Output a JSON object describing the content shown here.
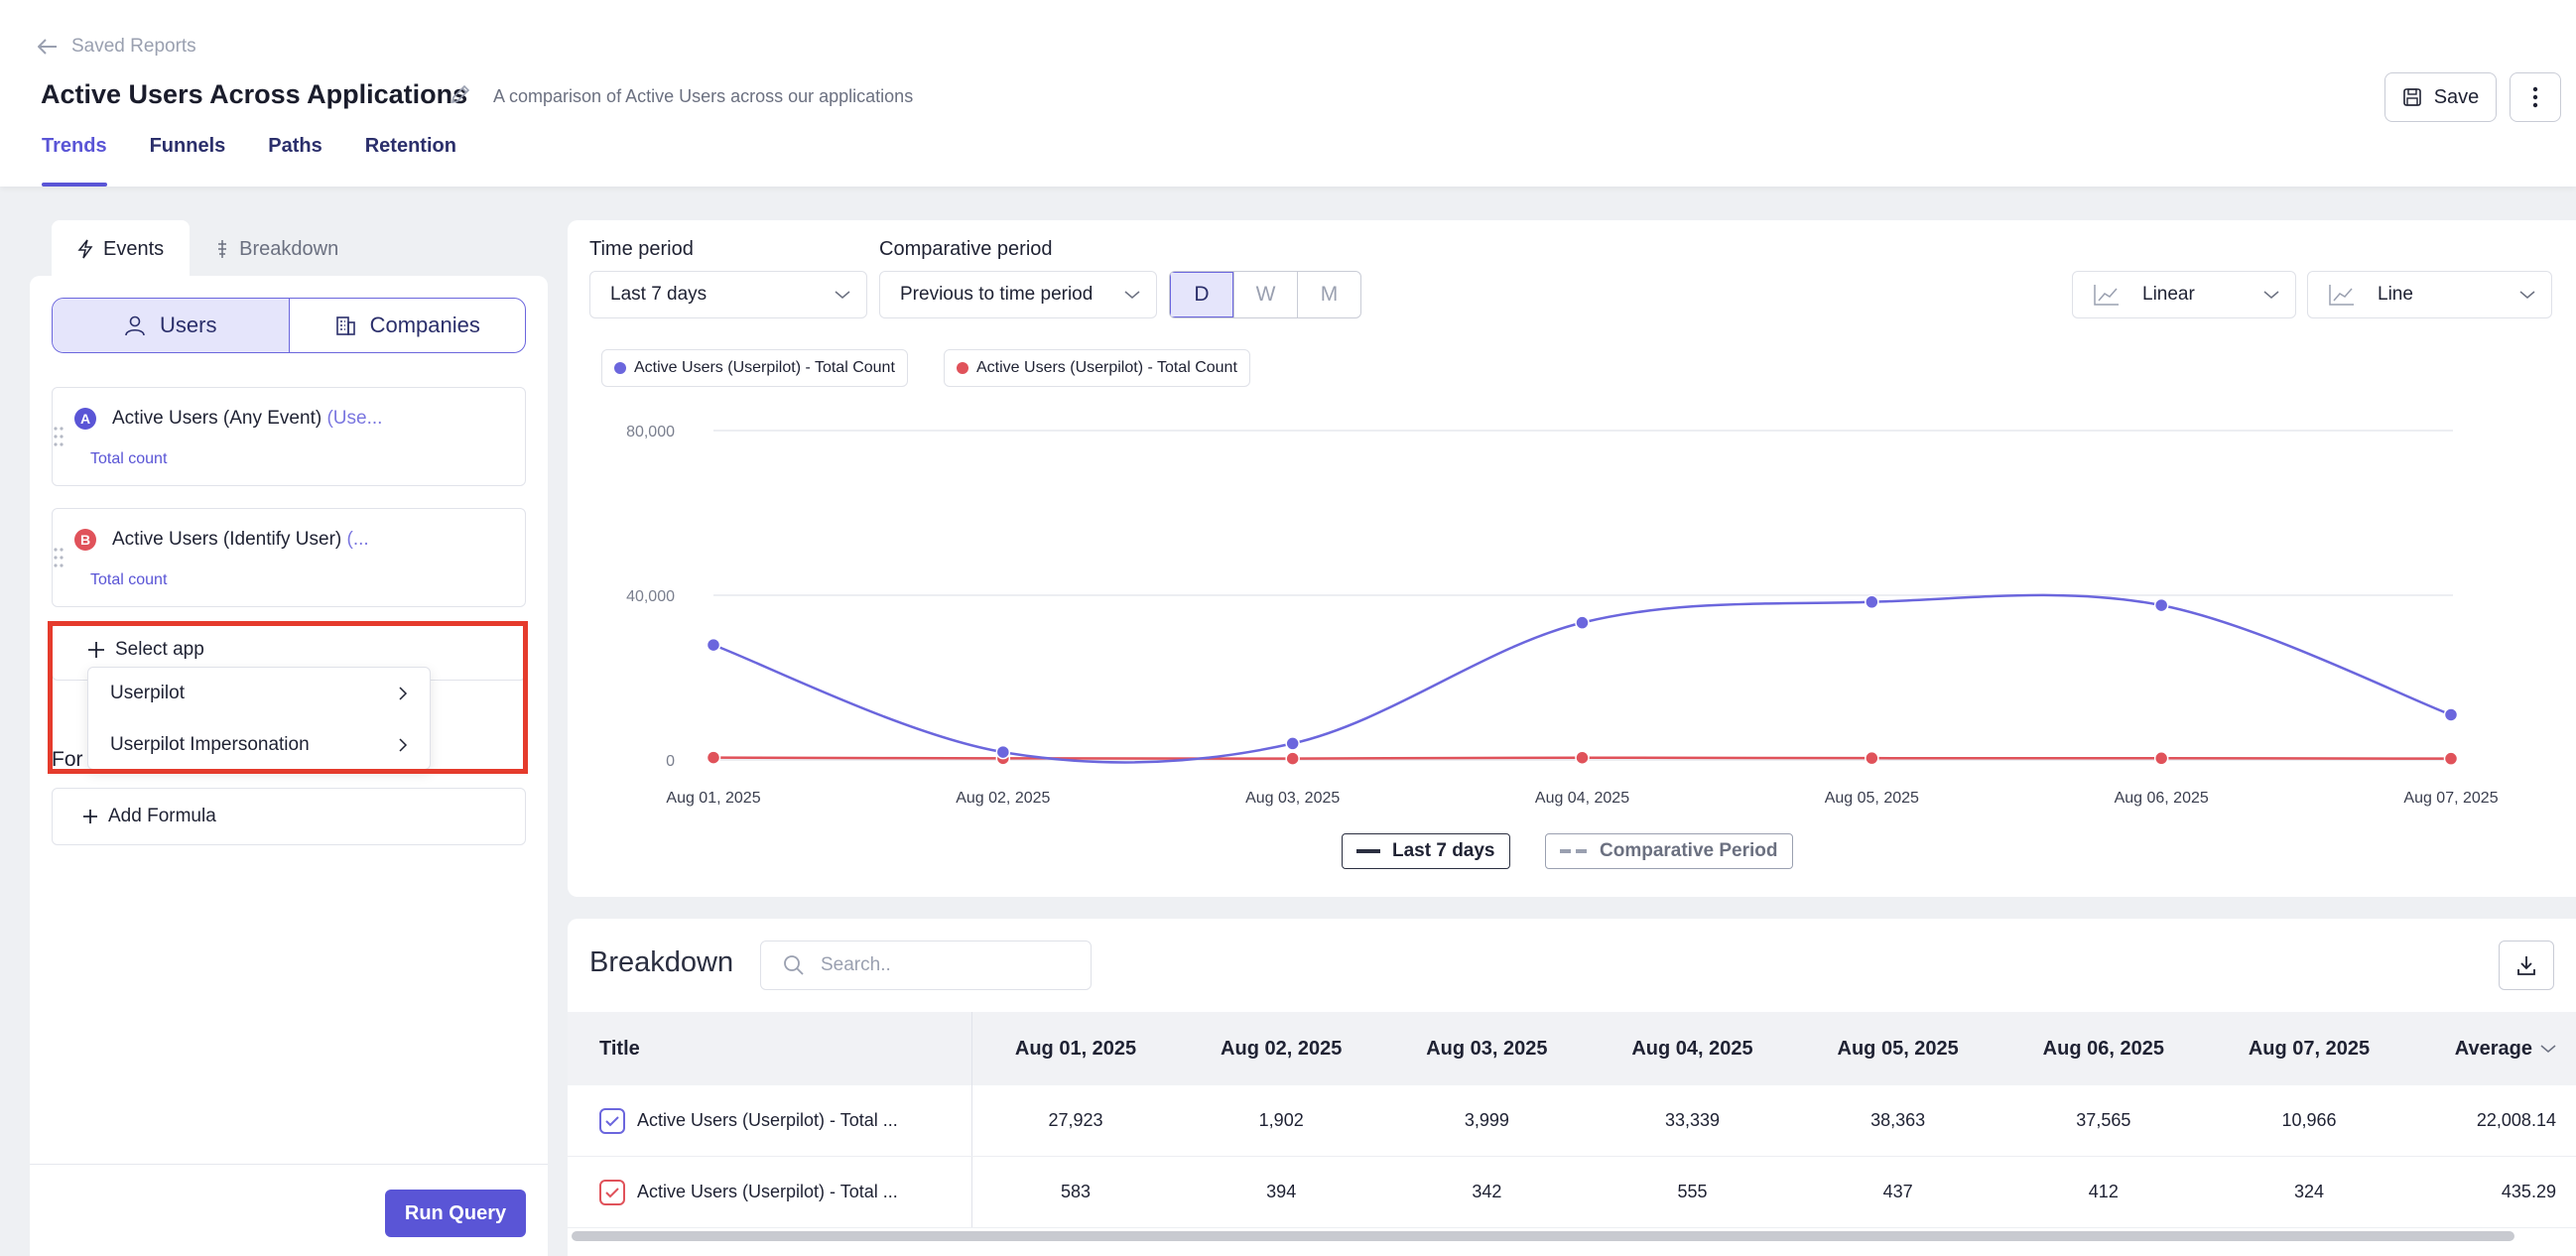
{
  "header": {
    "back_label": "Saved Reports",
    "title": "Active Users Across Applications",
    "description": "A comparison of Active Users across our applications",
    "save_label": "Save",
    "tabs": [
      {
        "label": "Trends",
        "active": true
      },
      {
        "label": "Funnels",
        "active": false
      },
      {
        "label": "Paths",
        "active": false
      },
      {
        "label": "Retention",
        "active": false
      }
    ]
  },
  "left_panel": {
    "tabs": [
      {
        "label": "Events",
        "icon": "lightning-icon",
        "active": true
      },
      {
        "label": "Breakdown",
        "icon": "split-icon",
        "active": false
      }
    ],
    "segment": [
      {
        "label": "Users",
        "icon": "user-icon",
        "active": true
      },
      {
        "label": "Companies",
        "icon": "building-icon",
        "active": false
      }
    ],
    "events": [
      {
        "badge": "A",
        "badge_color": "#5a55d6",
        "name": "Active Users (Any Event)",
        "suffix": " (Use...",
        "metric": "Total count"
      },
      {
        "badge": "B",
        "badge_color": "#e0525a",
        "name": "Active Users (Identify User)",
        "suffix": " (...",
        "metric": "Total count"
      }
    ],
    "select_app_label": "Select app",
    "dropdown_items": [
      "Userpilot",
      "Userpilot Impersonation"
    ],
    "formula_partial_label": "For",
    "add_formula_label": "Add Formula",
    "run_query_label": "Run Query"
  },
  "controls": {
    "time_period_label": "Time period",
    "time_period_value": "Last 7 days",
    "comparative_label": "Comparative period",
    "comparative_value": "Previous to time period",
    "granularity": [
      {
        "label": "D",
        "active": true
      },
      {
        "label": "W",
        "active": false
      },
      {
        "label": "M",
        "active": false
      }
    ],
    "scale_value": "Linear",
    "chart_type_value": "Line"
  },
  "chart_data": {
    "type": "line",
    "x": [
      "Aug 01, 2025",
      "Aug 02, 2025",
      "Aug 03, 2025",
      "Aug 04, 2025",
      "Aug 05, 2025",
      "Aug 06, 2025",
      "Aug 07, 2025"
    ],
    "y_ticks": [
      "80,000",
      "40,000",
      "0"
    ],
    "ylim": [
      0,
      80000
    ],
    "series": [
      {
        "name": "Active Users (Userpilot) - Total Count",
        "color": "#6b66dd",
        "values": [
          27923,
          1902,
          3999,
          33339,
          38363,
          37565,
          10966
        ]
      },
      {
        "name": "Active Users (Userpilot) - Total Count",
        "color": "#e0525a",
        "values": [
          583,
          394,
          342,
          555,
          437,
          412,
          324
        ]
      }
    ],
    "period_legend": [
      {
        "label": "Last 7 days",
        "style": "solid"
      },
      {
        "label": "Comparative Period",
        "style": "dashed"
      }
    ],
    "grid": true
  },
  "breakdown": {
    "title": "Breakdown",
    "search_placeholder": "Search..",
    "columns": [
      "Title",
      "Aug 01, 2025",
      "Aug 02, 2025",
      "Aug 03, 2025",
      "Aug 04, 2025",
      "Aug 05, 2025",
      "Aug 06, 2025",
      "Aug 07, 2025",
      "Average"
    ],
    "rows": [
      {
        "title": "Active Users (Userpilot) - Total ...",
        "color": "#6b66dd",
        "values": [
          "27,923",
          "1,902",
          "3,999",
          "33,339",
          "38,363",
          "37,565",
          "10,966",
          "22,008.14"
        ]
      },
      {
        "title": "Active Users (Userpilot) - Total ...",
        "color": "#e0525a",
        "values": [
          "583",
          "394",
          "342",
          "555",
          "437",
          "412",
          "324",
          "435.29"
        ]
      }
    ]
  }
}
